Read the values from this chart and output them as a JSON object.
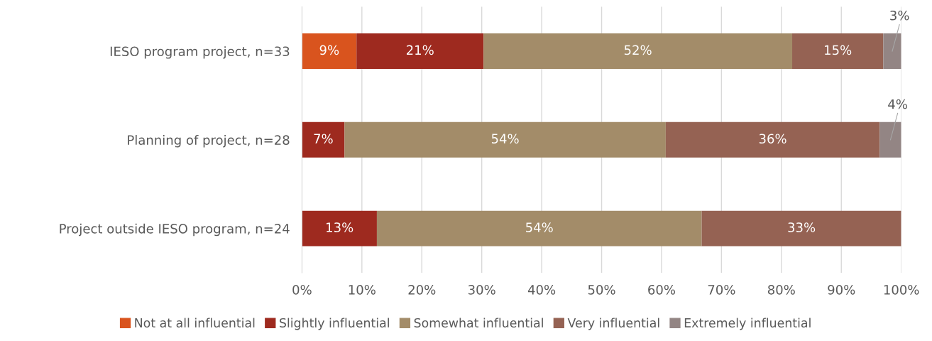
{
  "chart_data": {
    "type": "bar",
    "orientation": "horizontal",
    "stacked": true,
    "categories": [
      "IESO program project, n=33",
      "Planning of project, n=28",
      "Project outside IESO program, n=24"
    ],
    "series": [
      {
        "name": "Not at all influential",
        "color": "#d9541e",
        "values": [
          9.1,
          null,
          null
        ],
        "value_labels": [
          "9%",
          null,
          null
        ]
      },
      {
        "name": "Slightly influential",
        "color": "#9e2a1f",
        "values": [
          21.2,
          7.1,
          12.5
        ],
        "value_labels": [
          "21%",
          "7%",
          "13%"
        ]
      },
      {
        "name": "Somewhat influential",
        "color": "#a38c69",
        "values": [
          51.5,
          53.6,
          54.2
        ],
        "value_labels": [
          "52%",
          "54%",
          "54%"
        ]
      },
      {
        "name": "Very influential",
        "color": "#956253",
        "values": [
          15.2,
          35.7,
          33.3
        ],
        "value_labels": [
          "15%",
          "36%",
          "33%"
        ]
      },
      {
        "name": "Extremely influential",
        "color": "#938584",
        "values": [
          3.0,
          3.6,
          null
        ],
        "value_labels": [
          "3%",
          "4%",
          null
        ]
      }
    ],
    "xlim": [
      0,
      100
    ],
    "xticks": [
      {
        "value": 0,
        "label": "0%"
      },
      {
        "value": 10,
        "label": "10%"
      },
      {
        "value": 20,
        "label": "20%"
      },
      {
        "value": 30,
        "label": "30%"
      },
      {
        "value": 40,
        "label": "40%"
      },
      {
        "value": 50,
        "label": "50%"
      },
      {
        "value": 60,
        "label": "60%"
      },
      {
        "value": 70,
        "label": "70%"
      },
      {
        "value": 80,
        "label": "80%"
      },
      {
        "value": 90,
        "label": "90%"
      },
      {
        "value": 100,
        "label": "100%"
      }
    ],
    "grid": "x",
    "legend": "bottom"
  }
}
